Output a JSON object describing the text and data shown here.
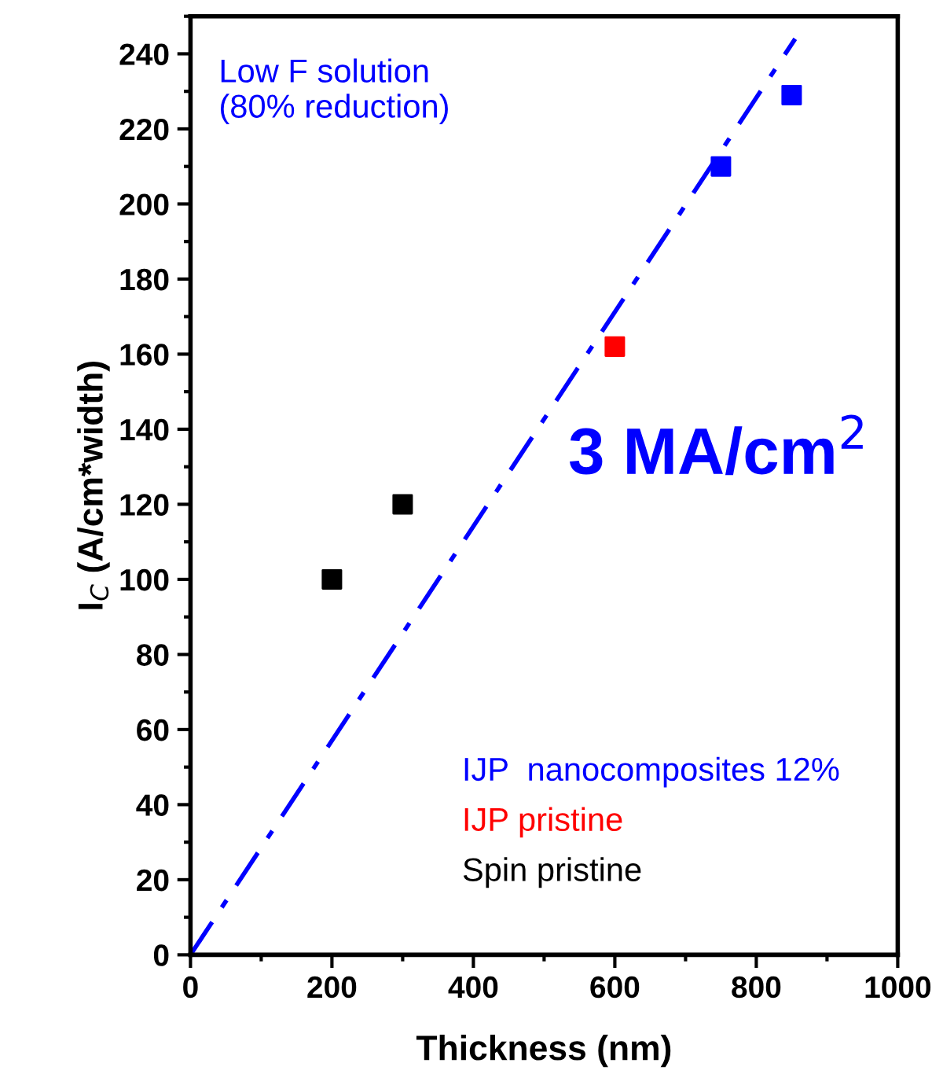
{
  "chart_data": {
    "type": "scatter",
    "xlabel": "Thickness (nm)",
    "ylabel": "I$_{C}$ (A/cm*width)",
    "xlim": [
      0,
      1000
    ],
    "xticks": [
      0,
      200,
      400,
      600,
      800,
      1000
    ],
    "ylim": [
      0,
      250
    ],
    "yticks": [
      0,
      20,
      40,
      60,
      80,
      100,
      120,
      140,
      160,
      180,
      200,
      220,
      240
    ],
    "marker": "square",
    "grid": false,
    "legend": "bottom right",
    "series": [
      {
        "type": "line",
        "color": "#0000ff",
        "line_style": "dashdot",
        "marker": "none",
        "x": [
          0,
          855
        ],
        "values": [
          0,
          244
        ]
      },
      {
        "name": "IJP  nanocomposites 12%",
        "color": "#0000ff",
        "x": [
          750,
          850
        ],
        "values": [
          210,
          229
        ]
      },
      {
        "name": "IJP pristine",
        "color": "#ff0000",
        "x": [
          600
        ],
        "values": [
          162
        ]
      },
      {
        "name": "Spin pristine",
        "color": "#000000",
        "x": [
          200,
          300
        ],
        "values": [
          100,
          120
        ]
      }
    ],
    "annotations": [
      "Low F solution\n(80% reduction)",
      "3 MA/cm$^{2}$"
    ]
  }
}
